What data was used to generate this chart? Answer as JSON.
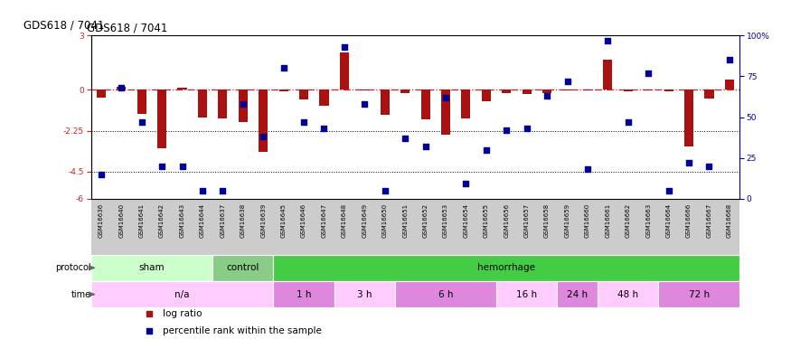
{
  "title": "GDS618 / 7041",
  "samples": [
    "GSM16636",
    "GSM16640",
    "GSM16641",
    "GSM16642",
    "GSM16643",
    "GSM16644",
    "GSM16637",
    "GSM16638",
    "GSM16639",
    "GSM16645",
    "GSM16646",
    "GSM16647",
    "GSM16648",
    "GSM16649",
    "GSM16650",
    "GSM16651",
    "GSM16652",
    "GSM16653",
    "GSM16654",
    "GSM16655",
    "GSM16656",
    "GSM16657",
    "GSM16658",
    "GSM16659",
    "GSM16660",
    "GSM16661",
    "GSM16662",
    "GSM16663",
    "GSM16664",
    "GSM16666",
    "GSM16667",
    "GSM16668"
  ],
  "log_ratio": [
    -0.45,
    0.15,
    -1.3,
    -3.2,
    0.12,
    -1.5,
    -1.55,
    -1.75,
    -3.4,
    -0.1,
    -0.55,
    -0.85,
    2.05,
    -0.05,
    -1.35,
    -0.2,
    -1.6,
    -2.45,
    -1.55,
    -0.65,
    -0.2,
    -0.25,
    -0.2,
    -0.05,
    -0.05,
    1.65,
    -0.1,
    -0.05,
    -0.1,
    -3.1,
    -0.5,
    0.55
  ],
  "pct_rank": [
    15,
    68,
    47,
    20,
    20,
    5,
    5,
    58,
    38,
    80,
    47,
    43,
    93,
    58,
    5,
    37,
    32,
    62,
    9,
    30,
    42,
    43,
    63,
    72,
    18,
    97,
    47,
    77,
    5,
    22,
    20,
    85
  ],
  "ylim": [
    -6,
    3
  ],
  "dotted_lines": [
    -2.25,
    -4.5
  ],
  "bar_color": "#aa1111",
  "dot_color": "#000099",
  "zero_line_color": "#cc2222",
  "xticklabel_bg": "#cccccc",
  "protocol_groups": [
    {
      "label": "sham",
      "start": 0,
      "end": 5,
      "color": "#ccffcc"
    },
    {
      "label": "control",
      "start": 6,
      "end": 8,
      "color": "#88cc88"
    },
    {
      "label": "hemorrhage",
      "start": 9,
      "end": 31,
      "color": "#44cc44"
    }
  ],
  "time_groups": [
    {
      "label": "n/a",
      "start": 0,
      "end": 8,
      "color": "#ffccff"
    },
    {
      "label": "1 h",
      "start": 9,
      "end": 11,
      "color": "#dd88dd"
    },
    {
      "label": "3 h",
      "start": 12,
      "end": 14,
      "color": "#ffccff"
    },
    {
      "label": "6 h",
      "start": 15,
      "end": 19,
      "color": "#dd88dd"
    },
    {
      "label": "16 h",
      "start": 20,
      "end": 22,
      "color": "#ffccff"
    },
    {
      "label": "24 h",
      "start": 23,
      "end": 24,
      "color": "#dd88dd"
    },
    {
      "label": "48 h",
      "start": 25,
      "end": 27,
      "color": "#ffccff"
    },
    {
      "label": "72 h",
      "start": 28,
      "end": 31,
      "color": "#dd88dd"
    }
  ],
  "legend_items": [
    {
      "label": "log ratio",
      "color": "#aa1111"
    },
    {
      "label": "percentile rank within the sample",
      "color": "#000099"
    }
  ]
}
